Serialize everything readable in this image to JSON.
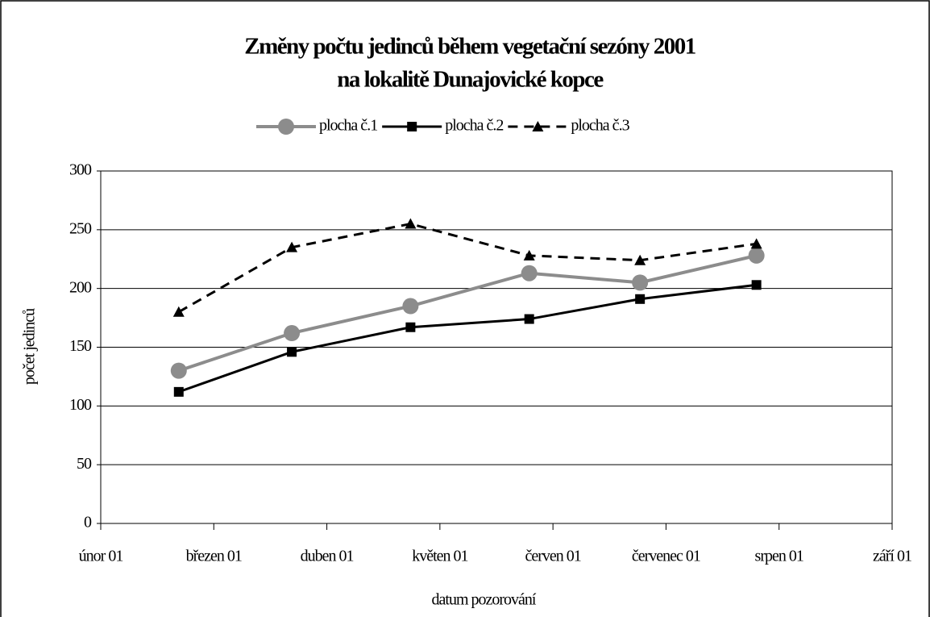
{
  "chart_data": {
    "type": "line",
    "title": [
      "Změny počtu jedinců během vegetační sezóny 2001",
      "na lokalitě Dunajovické kopce"
    ],
    "x_label": "datum pozorování",
    "y_label": "počet jedinců",
    "x": [
      2.69,
      3.69,
      4.74,
      5.79,
      6.77,
      7.8
    ],
    "series": [
      {
        "name": "plocha č.1",
        "color": "#8c8c8c",
        "marker": "circle",
        "dash": false,
        "values": [
          130,
          162,
          185,
          213,
          205,
          228
        ]
      },
      {
        "name": "plocha č.2",
        "color": "#000000",
        "marker": "square",
        "dash": false,
        "values": [
          112,
          146,
          167,
          174,
          191,
          203
        ]
      },
      {
        "name": "plocha č.3",
        "color": "#000000",
        "marker": "triangle",
        "dash": true,
        "values": [
          180,
          235,
          255,
          228,
          224,
          238
        ]
      }
    ],
    "xlim": [
      2,
      9
    ],
    "xticks": [
      {
        "value": 2,
        "label": "únor 01"
      },
      {
        "value": 3,
        "label": "březen 01"
      },
      {
        "value": 4,
        "label": "duben 01"
      },
      {
        "value": 5,
        "label": "květen 01"
      },
      {
        "value": 6,
        "label": "červen 01"
      },
      {
        "value": 7,
        "label": "červenec 01"
      },
      {
        "value": 8,
        "label": "srpen 01"
      },
      {
        "value": 9,
        "label": "září 01"
      }
    ],
    "ylim": [
      0,
      300
    ],
    "yticks": [
      0,
      50,
      100,
      150,
      200,
      250,
      300
    ],
    "grid": true,
    "legend": "top"
  }
}
